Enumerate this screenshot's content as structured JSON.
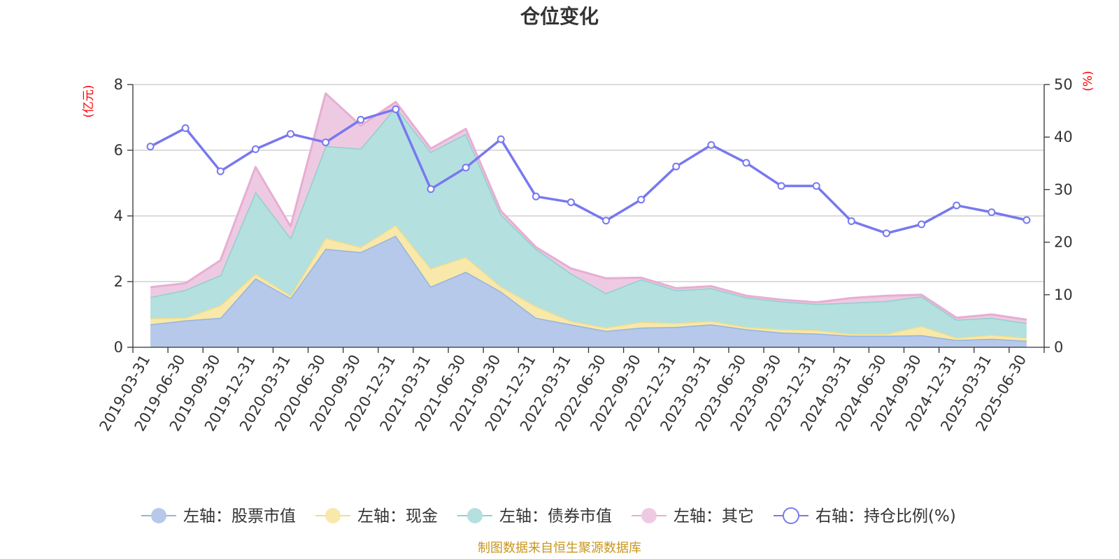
{
  "title": "仓位变化",
  "source_note": "制图数据来自恒生聚源数据库",
  "colors": {
    "stock": "#b6c9ea",
    "stock_line": "#94b4df",
    "cash": "#f8e8aa",
    "cash_line": "#f2dc8c",
    "bond": "#b4e0df",
    "bond_line": "#8ed0cf",
    "other": "#eecae2",
    "other_line": "#e6aed2",
    "ratio": "#7878f0",
    "grid": "#c8c8c8",
    "axis": "#333333",
    "unit": "#ff0000"
  },
  "chart_data": {
    "type": "area",
    "title": "仓位变化",
    "x": [
      "2019-03-31",
      "2019-06-30",
      "2019-09-30",
      "2019-12-31",
      "2020-03-31",
      "2020-06-30",
      "2020-09-30",
      "2020-12-31",
      "2021-03-31",
      "2021-06-30",
      "2021-09-30",
      "2021-12-31",
      "2022-03-31",
      "2022-06-30",
      "2022-09-30",
      "2022-12-31",
      "2023-03-31",
      "2023-06-30",
      "2023-09-30",
      "2023-12-31",
      "2024-03-31",
      "2024-06-30",
      "2024-09-30",
      "2024-12-31",
      "2025-03-31",
      "2025-06-30"
    ],
    "y_left": {
      "unit": "(亿元)",
      "ylim": [
        0,
        8
      ],
      "ticks": [
        "0",
        "2",
        "4",
        "6",
        "8"
      ]
    },
    "y_right": {
      "unit": "(%)",
      "ylim": [
        0,
        50
      ],
      "ticks": [
        "0",
        "10",
        "20",
        "30",
        "40",
        "50"
      ]
    },
    "stacked": true,
    "grid": true,
    "legend_position": "bottom",
    "series": [
      {
        "key": "stock",
        "name": "左轴：股票市值",
        "axis": "left",
        "values": [
          0.7,
          0.82,
          0.9,
          2.1,
          1.5,
          3.0,
          2.9,
          3.4,
          1.85,
          2.3,
          1.7,
          0.9,
          0.7,
          0.5,
          0.6,
          0.62,
          0.7,
          0.55,
          0.45,
          0.42,
          0.35,
          0.35,
          0.37,
          0.22,
          0.26,
          0.2
        ]
      },
      {
        "key": "cash",
        "name": "左轴：现金",
        "axis": "left",
        "values": [
          0.18,
          0.08,
          0.38,
          0.14,
          0.08,
          0.33,
          0.15,
          0.32,
          0.55,
          0.45,
          0.15,
          0.35,
          0.1,
          0.1,
          0.17,
          0.12,
          0.1,
          0.07,
          0.1,
          0.1,
          0.06,
          0.06,
          0.28,
          0.07,
          0.12,
          0.09
        ]
      },
      {
        "key": "bond",
        "name": "左轴：债券市值",
        "axis": "left",
        "values": [
          0.65,
          0.85,
          0.92,
          2.5,
          1.75,
          2.8,
          3.0,
          3.6,
          3.55,
          3.75,
          2.2,
          1.75,
          1.45,
          1.05,
          1.3,
          1.0,
          1.0,
          0.9,
          0.85,
          0.8,
          0.95,
          1.0,
          0.9,
          0.55,
          0.52,
          0.45
        ]
      },
      {
        "key": "other",
        "name": "左轴：其它",
        "axis": "left",
        "values": [
          0.3,
          0.2,
          0.45,
          0.75,
          0.35,
          1.6,
          0.7,
          0.15,
          0.1,
          0.15,
          0.1,
          0.05,
          0.15,
          0.45,
          0.05,
          0.06,
          0.06,
          0.05,
          0.05,
          0.05,
          0.14,
          0.16,
          0.05,
          0.06,
          0.1,
          0.1
        ]
      },
      {
        "key": "ratio",
        "name": "右轴：持仓比例(%)",
        "axis": "right",
        "type": "line",
        "values": [
          38.2,
          41.7,
          33.5,
          37.7,
          40.6,
          39.0,
          43.3,
          45.3,
          30.1,
          34.2,
          39.6,
          28.7,
          27.6,
          24.1,
          28.1,
          34.4,
          38.5,
          35.1,
          30.7,
          30.7,
          24.0,
          21.7,
          23.4,
          27.0,
          25.7,
          24.2
        ]
      }
    ]
  }
}
